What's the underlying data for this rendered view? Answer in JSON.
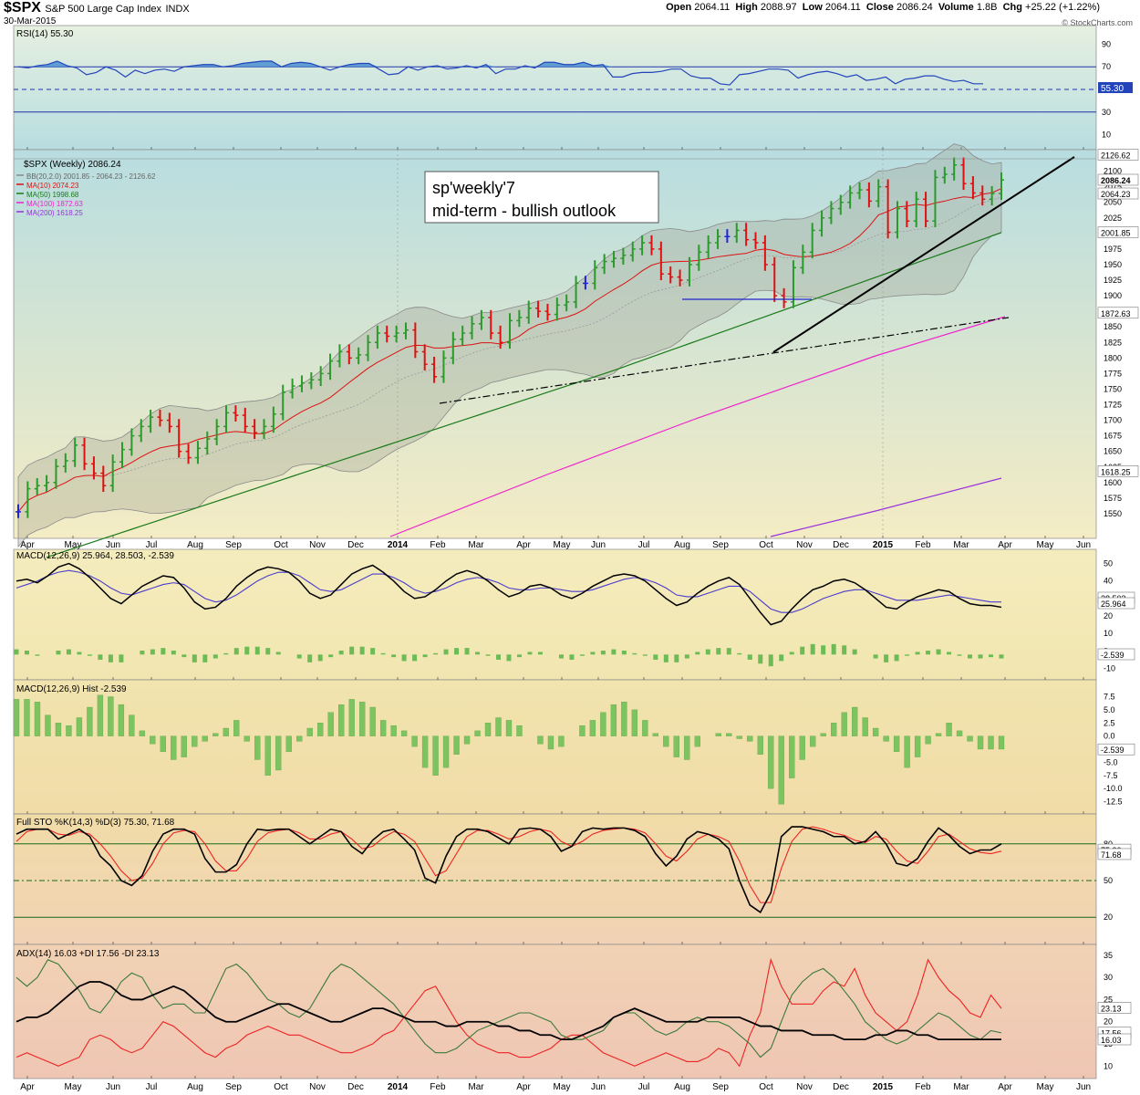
{
  "header": {
    "symbol": "$SPX",
    "name": "S&P 500 Large Cap Index",
    "exchange": "INDX",
    "date": "30-Mar-2015",
    "open_label": "Open",
    "open": "2064.11",
    "high_label": "High",
    "high": "2088.97",
    "low_label": "Low",
    "low": "2064.11",
    "close_label": "Close",
    "close": "2086.24",
    "volume_label": "Volume",
    "volume": "1.8B",
    "chg_label": "Chg",
    "chg": "+25.22 (+1.22%)",
    "copyright": "© StockCharts.com"
  },
  "annotation": {
    "line1": "sp'weekly'7",
    "line2": "mid-term - bullish outlook"
  },
  "colors": {
    "up": "#2a9a2a",
    "down": "#dd1111",
    "unch": "#2222dd",
    "ma10": "#dd1111",
    "ma50": "#1a7a1a",
    "ma100": "#ee22cc",
    "ma200": "#9933dd",
    "bb_fill": "#9aa090"
  },
  "chart_data": [
    {
      "type": "line",
      "panel": "RSI",
      "title": "RSI(14) 55.30",
      "ylim": [
        0,
        100
      ],
      "yticks": [
        "90",
        "70",
        "50",
        "30",
        "10"
      ],
      "levels": [
        70,
        50,
        30
      ],
      "last_value": "55.30",
      "series": [
        {
          "name": "RSI(14)",
          "values": [
            70,
            69,
            71,
            72,
            75,
            71,
            69,
            63,
            65,
            70,
            67,
            61,
            67,
            64,
            67,
            68,
            66,
            70,
            71,
            72,
            72,
            70,
            71,
            73,
            74,
            75,
            75,
            70,
            73,
            74,
            73,
            70,
            67,
            70,
            72,
            73,
            73,
            68,
            63,
            64,
            70,
            67,
            70,
            71,
            68,
            69,
            71,
            69,
            72,
            64,
            68,
            68,
            71,
            69,
            74,
            74,
            72,
            72,
            74,
            71,
            72,
            61,
            61,
            64,
            65,
            65,
            66,
            68,
            68,
            62,
            60,
            60,
            55,
            54,
            63,
            64,
            66,
            68,
            68,
            67,
            60,
            63,
            65,
            66,
            64,
            61,
            63,
            58,
            59,
            61,
            55,
            59,
            60,
            62,
            62,
            59,
            57,
            58,
            55,
            55
          ]
        }
      ]
    },
    {
      "type": "bar",
      "panel": "Price",
      "title": "$SPX (Weekly) 2086.24",
      "ylim": [
        1520,
        2150
      ],
      "yticks": [
        "2100",
        "2075",
        "2050",
        "2025",
        "2000",
        "1975",
        "1950",
        "1925",
        "1900",
        "1875",
        "1850",
        "1825",
        "1800",
        "1775",
        "1750",
        "1725",
        "1700",
        "1675",
        "1650",
        "1625",
        "1600",
        "1575",
        "1550"
      ],
      "x_ticks": [
        "Apr",
        "May",
        "Jun",
        "Jul",
        "Aug",
        "Sep",
        "Oct",
        "Nov",
        "Dec",
        "2014",
        "Feb",
        "Mar",
        "Apr",
        "May",
        "Jun",
        "Jul",
        "Aug",
        "Sep",
        "Oct",
        "Nov",
        "Dec",
        "2015",
        "Feb",
        "Mar",
        "Apr",
        "May",
        "Jun"
      ],
      "legend": [
        {
          "label": "BB(20,2.0) 2001.85 - 2064.23 - 2126.62",
          "color": "#888888"
        },
        {
          "label": "MA(10) 2074.23",
          "color": "#dd1111"
        },
        {
          "label": "MA(50) 1998.68",
          "color": "#1a7a1a"
        },
        {
          "label": "MA(100) 1872.63",
          "color": "#ee22cc"
        },
        {
          "label": "MA(200) 1618.25",
          "color": "#9933dd"
        }
      ],
      "right_labels": [
        "2126.62",
        "2086.24",
        "2064.23",
        "2001.85",
        "1872.63",
        "1618.25"
      ],
      "series_ohlc": {
        "open": [
          1553,
          1553,
          1590,
          1595,
          1600,
          1626,
          1635,
          1660,
          1630,
          1615,
          1595,
          1633,
          1653,
          1675,
          1690,
          1705,
          1700,
          1690,
          1650,
          1640,
          1655,
          1670,
          1690,
          1712,
          1708,
          1690,
          1680,
          1690,
          1710,
          1745,
          1755,
          1760,
          1765,
          1775,
          1795,
          1810,
          1800,
          1805,
          1825,
          1840,
          1835,
          1840,
          1845,
          1810,
          1790,
          1770,
          1800,
          1830,
          1840,
          1855,
          1865,
          1840,
          1825,
          1860,
          1865,
          1880,
          1875,
          1870,
          1885,
          1890,
          1920,
          1920,
          1945,
          1955,
          1960,
          1965,
          1975,
          1985,
          1975,
          1935,
          1930,
          1925,
          1950,
          1970,
          1985,
          1995,
          1995,
          2005,
          1990,
          1985,
          1950,
          1900,
          1890,
          1945,
          1970,
          2005,
          2025,
          2040,
          2050,
          2065,
          2070,
          2052,
          2075,
          2002,
          2040,
          2020,
          2055,
          2020,
          2090,
          2095,
          2110,
          2080,
          2065,
          2055,
          2064
        ],
        "close": [
          1553,
          1590,
          1595,
          1600,
          1626,
          1635,
          1660,
          1630,
          1615,
          1595,
          1633,
          1653,
          1675,
          1690,
          1705,
          1700,
          1690,
          1650,
          1640,
          1655,
          1670,
          1690,
          1712,
          1708,
          1690,
          1680,
          1690,
          1710,
          1745,
          1755,
          1760,
          1765,
          1775,
          1795,
          1810,
          1800,
          1805,
          1825,
          1840,
          1835,
          1840,
          1845,
          1810,
          1790,
          1770,
          1800,
          1830,
          1840,
          1855,
          1865,
          1840,
          1825,
          1860,
          1865,
          1880,
          1875,
          1870,
          1885,
          1890,
          1920,
          1920,
          1945,
          1955,
          1960,
          1965,
          1975,
          1985,
          1975,
          1935,
          1930,
          1925,
          1950,
          1970,
          1985,
          1995,
          1995,
          2005,
          1990,
          1985,
          1950,
          1900,
          1890,
          1945,
          1970,
          2005,
          2025,
          2040,
          2050,
          2065,
          2070,
          2052,
          2075,
          2002,
          2040,
          2020,
          2055,
          2020,
          2090,
          2095,
          2110,
          2080,
          2065,
          2055,
          2064,
          2086
        ]
      },
      "trendlines": [
        "support line Oct-2014 low to Apr-2015",
        "dash-dot line Feb-2014 low to Apr-2015",
        "horizontal support at ~1904 Aug-Nov 2014"
      ]
    },
    {
      "type": "line",
      "panel": "MACD",
      "title": "MACD(12,26,9) 25.964, 28.503, -2.539",
      "yticks": [
        "50",
        "40",
        "30",
        "20",
        "10",
        "0",
        "-10"
      ],
      "right_labels": [
        "28.503",
        "25.964",
        "-2.539"
      ]
    },
    {
      "type": "bar",
      "panel": "MACD Histogram",
      "title": "MACD(12,26,9) Hist -2.539",
      "yticks": [
        "7.5",
        "5.0",
        "2.5",
        "0.0",
        "-2.5",
        "-5.0",
        "-7.5",
        "-10.0",
        "-12.5"
      ],
      "right_labels": [
        "-2.539"
      ]
    },
    {
      "type": "line",
      "panel": "Full Stochastics",
      "title": "Full STO %K(14,3) %D(3) 75.30, 71.68",
      "yticks": [
        "80",
        "50",
        "20"
      ],
      "levels": [
        80,
        50,
        20
      ],
      "right_labels": [
        "75.30",
        "71.68"
      ]
    },
    {
      "type": "line",
      "panel": "ADX",
      "title": "ADX(14) 16.03 +DI 17.56 -DI 23.13",
      "yticks": [
        "35",
        "30",
        "25",
        "20",
        "15",
        "10"
      ],
      "right_labels": [
        "23.13",
        "17.56",
        "16.03"
      ]
    }
  ]
}
